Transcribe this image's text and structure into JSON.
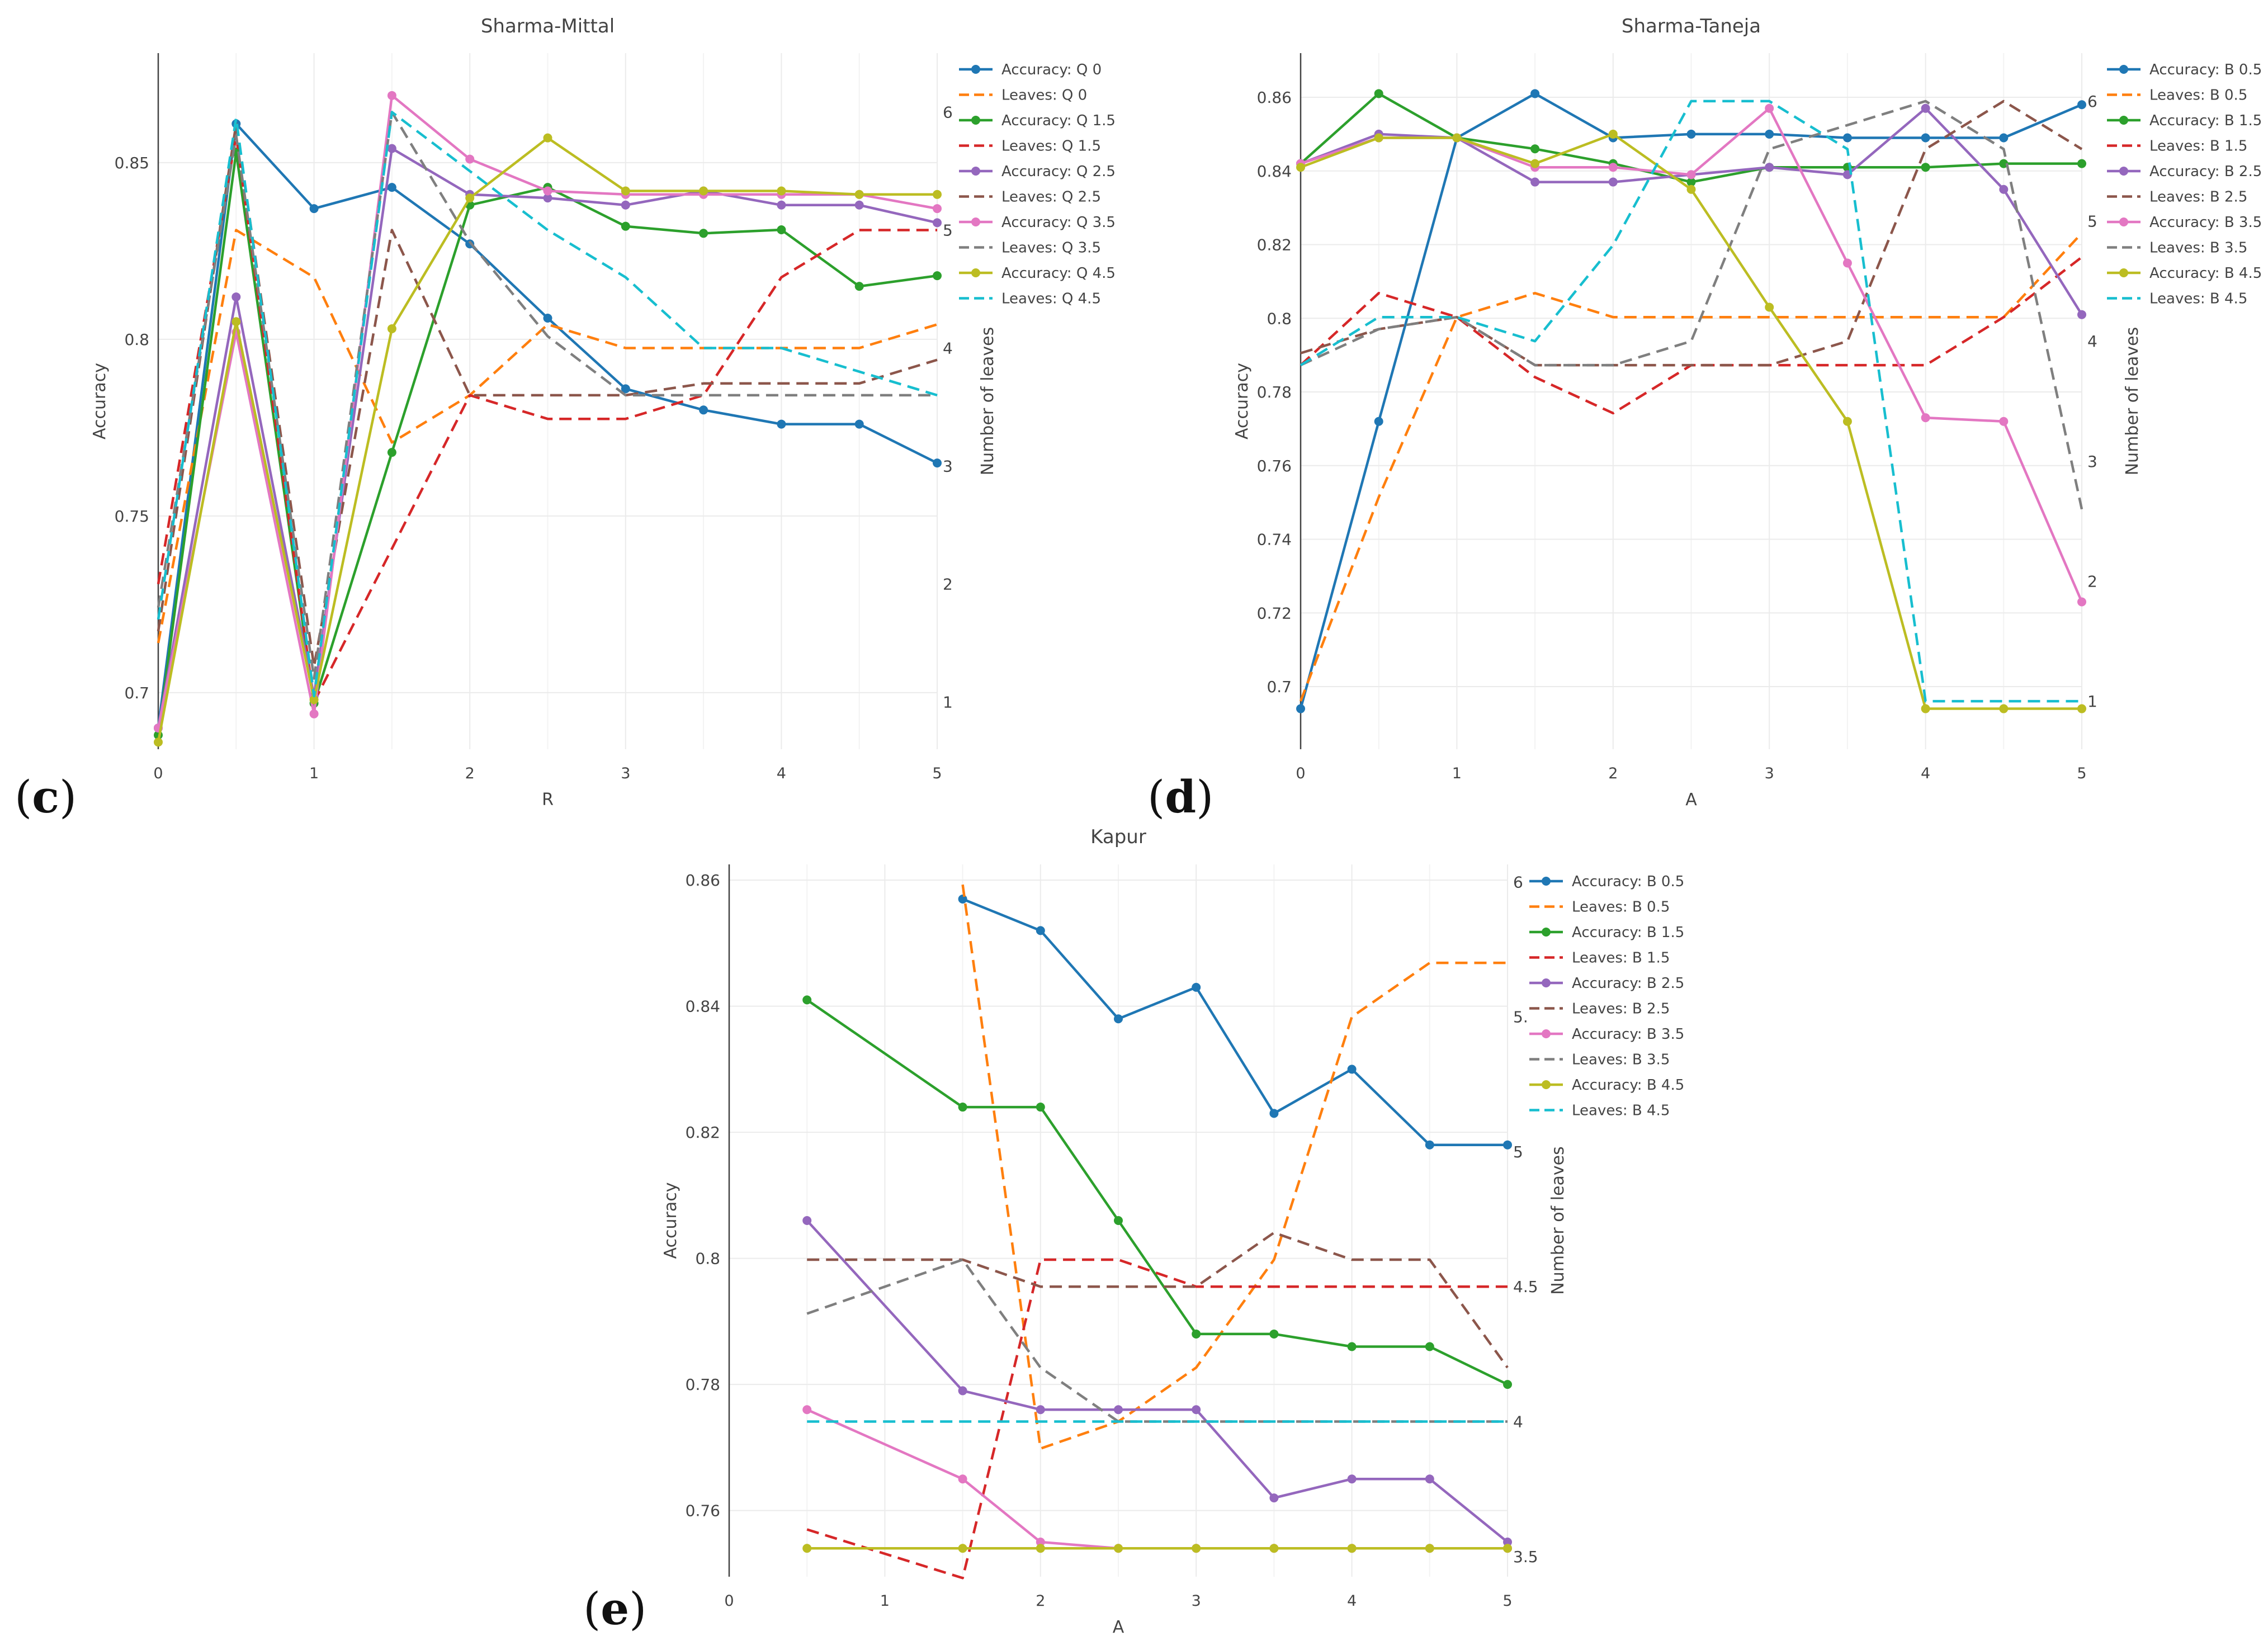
{
  "panel_labels": {
    "c": "(",
    "c_letter": "c",
    "c_close": ")",
    "d": "(",
    "d_letter": "d",
    "d_close": ")",
    "e": "(",
    "e_letter": "e",
    "e_close": ")"
  },
  "colors": {
    "blue": "#1f77b4",
    "orange": "#ff7f0e",
    "green": "#2ca02c",
    "red": "#d62728",
    "purple": "#9467bd",
    "brown": "#8c564b",
    "pink": "#e377c2",
    "gray": "#7f7f7f",
    "olive": "#bcbd22",
    "cyan": "#17becf",
    "grid": "#ebebeb",
    "axis": "#444444"
  },
  "chart_data": [
    {
      "type": "line",
      "id": "c",
      "title": "Sharma-Mittal",
      "xlabel": "R",
      "ylabel": "Accuracy",
      "y2label": "Number of leaves",
      "xlim": [
        0,
        5
      ],
      "ylim": [
        0.684,
        0.881
      ],
      "y2lim": [
        0.6,
        6.5
      ],
      "xticks": [
        "0",
        "1",
        "2",
        "3",
        "4",
        "5"
      ],
      "yticks": [
        {
          "v": 0.7,
          "t": "0.7"
        },
        {
          "v": 0.75,
          "t": "0.75"
        },
        {
          "v": 0.8,
          "t": "0.8"
        },
        {
          "v": 0.85,
          "t": "0.85"
        }
      ],
      "y2ticks": [
        {
          "v": 1,
          "t": "1"
        },
        {
          "v": 2,
          "t": "2"
        },
        {
          "v": 3,
          "t": "3"
        },
        {
          "v": 4,
          "t": "4"
        },
        {
          "v": 5,
          "t": "5"
        },
        {
          "v": 6,
          "t": "6"
        }
      ],
      "x": [
        0,
        0.5,
        1,
        1.5,
        2,
        2.5,
        3,
        3.5,
        4,
        4.5,
        5
      ],
      "series": [
        {
          "name": "Accuracy: Q 0",
          "color": "blue",
          "axis": "y",
          "dash": false,
          "values": [
            0.69,
            0.861,
            0.837,
            0.843,
            0.827,
            0.806,
            0.786,
            0.78,
            0.776,
            0.776,
            0.765
          ]
        },
        {
          "name": "Leaves: Q 0",
          "color": "orange",
          "axis": "y2",
          "dash": true,
          "values": [
            1.5,
            5.0,
            4.6,
            3.2,
            3.6,
            4.2,
            4.0,
            4.0,
            4.0,
            4.0,
            4.2
          ]
        },
        {
          "name": "Accuracy: Q 1.5",
          "color": "green",
          "axis": "y",
          "dash": false,
          "values": [
            0.688,
            0.853,
            0.697,
            0.768,
            0.838,
            0.843,
            0.832,
            0.83,
            0.831,
            0.815,
            0.818
          ]
        },
        {
          "name": "Leaves: Q 1.5",
          "color": "red",
          "axis": "y2",
          "dash": true,
          "values": [
            2.0,
            5.8,
            1.0,
            2.3,
            3.6,
            3.4,
            3.4,
            3.6,
            4.6,
            5.0,
            5.0
          ]
        },
        {
          "name": "Accuracy: Q 2.5",
          "color": "purple",
          "axis": "y",
          "dash": false,
          "values": [
            0.69,
            0.812,
            0.699,
            0.854,
            0.841,
            0.84,
            0.838,
            0.842,
            0.838,
            0.838,
            0.833
          ]
        },
        {
          "name": "Leaves: Q 2.5",
          "color": "brown",
          "axis": "y2",
          "dash": true,
          "values": [
            1.6,
            5.9,
            1.3,
            5.0,
            3.6,
            3.6,
            3.6,
            3.7,
            3.7,
            3.7,
            3.9
          ]
        },
        {
          "name": "Accuracy: Q 3.5",
          "color": "pink",
          "axis": "y",
          "dash": false,
          "values": [
            0.69,
            0.802,
            0.694,
            0.869,
            0.851,
            0.842,
            0.841,
            0.841,
            0.841,
            0.841,
            0.837
          ]
        },
        {
          "name": "Leaves: Q 3.5",
          "color": "gray",
          "axis": "y2",
          "dash": true,
          "values": [
            1.8,
            5.8,
            1.2,
            6.0,
            4.9,
            4.1,
            3.6,
            3.6,
            3.6,
            3.6,
            3.6
          ]
        },
        {
          "name": "Accuracy: Q 4.5",
          "color": "olive",
          "axis": "y",
          "dash": false,
          "values": [
            0.686,
            0.805,
            0.698,
            0.803,
            0.84,
            0.857,
            0.842,
            0.842,
            0.842,
            0.841,
            0.841
          ]
        },
        {
          "name": "Leaves: Q 4.5",
          "color": "cyan",
          "axis": "y2",
          "dash": true,
          "values": [
            1.7,
            5.95,
            1.05,
            6.0,
            5.5,
            5.0,
            4.6,
            4.0,
            4.0,
            3.8,
            3.6
          ]
        }
      ]
    },
    {
      "type": "line",
      "id": "d",
      "title": "Sharma-Taneja",
      "xlabel": "A",
      "ylabel": "Accuracy",
      "y2label": "Number of leaves",
      "xlim": [
        0,
        5
      ],
      "ylim": [
        0.683,
        0.872
      ],
      "y2lim": [
        0.6,
        6.4
      ],
      "xticks": [
        "0",
        "1",
        "2",
        "3",
        "4",
        "5"
      ],
      "yticks": [
        {
          "v": 0.7,
          "t": "0.7"
        },
        {
          "v": 0.72,
          "t": "0.72"
        },
        {
          "v": 0.74,
          "t": "0.74"
        },
        {
          "v": 0.76,
          "t": "0.76"
        },
        {
          "v": 0.78,
          "t": "0.78"
        },
        {
          "v": 0.8,
          "t": "0.8"
        },
        {
          "v": 0.82,
          "t": "0.82"
        },
        {
          "v": 0.84,
          "t": "0.84"
        },
        {
          "v": 0.86,
          "t": "0.86"
        }
      ],
      "y2ticks": [
        {
          "v": 1,
          "t": "1"
        },
        {
          "v": 2,
          "t": "2"
        },
        {
          "v": 3,
          "t": "3"
        },
        {
          "v": 4,
          "t": "4"
        },
        {
          "v": 5,
          "t": "5"
        },
        {
          "v": 6,
          "t": "6"
        }
      ],
      "x": [
        0,
        0.5,
        1,
        1.5,
        2,
        2.5,
        3,
        3.5,
        4,
        4.5,
        5
      ],
      "series": [
        {
          "name": "Accuracy: B 0.5",
          "color": "blue",
          "axis": "y",
          "dash": false,
          "values": [
            0.694,
            0.772,
            0.849,
            0.861,
            0.849,
            0.85,
            0.85,
            0.849,
            0.849,
            0.849,
            0.858
          ]
        },
        {
          "name": "Leaves: B 0.5",
          "color": "orange",
          "axis": "y2",
          "dash": true,
          "values": [
            1.0,
            2.7,
            4.2,
            4.4,
            4.2,
            4.2,
            4.2,
            4.2,
            4.2,
            4.2,
            4.9
          ]
        },
        {
          "name": "Accuracy: B 1.5",
          "color": "green",
          "axis": "y",
          "dash": false,
          "values": [
            0.842,
            0.861,
            0.849,
            0.846,
            0.842,
            0.837,
            0.841,
            0.841,
            0.841,
            0.842,
            0.842
          ]
        },
        {
          "name": "Leaves: B 1.5",
          "color": "red",
          "axis": "y2",
          "dash": true,
          "values": [
            3.8,
            4.4,
            4.2,
            3.7,
            3.4,
            3.8,
            3.8,
            3.8,
            3.8,
            4.2,
            4.7
          ]
        },
        {
          "name": "Accuracy: B 2.5",
          "color": "purple",
          "axis": "y",
          "dash": false,
          "values": [
            0.842,
            0.85,
            0.849,
            0.837,
            0.837,
            0.839,
            0.841,
            0.839,
            0.857,
            0.835,
            0.801
          ]
        },
        {
          "name": "Leaves: B 2.5",
          "color": "brown",
          "axis": "y2",
          "dash": true,
          "values": [
            3.9,
            4.1,
            4.2,
            3.8,
            3.8,
            3.8,
            3.8,
            4.0,
            5.6,
            6.0,
            5.6
          ]
        },
        {
          "name": "Accuracy: B 3.5",
          "color": "pink",
          "axis": "y",
          "dash": false,
          "values": [
            0.842,
            0.849,
            0.849,
            0.841,
            0.841,
            0.839,
            0.857,
            0.815,
            0.773,
            0.772,
            0.723
          ]
        },
        {
          "name": "Leaves: B 3.5",
          "color": "gray",
          "axis": "y2",
          "dash": true,
          "values": [
            3.8,
            4.1,
            4.2,
            3.8,
            3.8,
            4.0,
            5.6,
            5.8,
            6.0,
            5.6,
            2.6
          ]
        },
        {
          "name": "Accuracy: B 4.5",
          "color": "olive",
          "axis": "y",
          "dash": false,
          "values": [
            0.841,
            0.849,
            0.849,
            0.842,
            0.85,
            0.835,
            0.803,
            0.772,
            0.694,
            0.694,
            0.694
          ]
        },
        {
          "name": "Leaves: B 4.5",
          "color": "cyan",
          "axis": "y2",
          "dash": true,
          "values": [
            3.8,
            4.2,
            4.2,
            4.0,
            4.8,
            6.0,
            6.0,
            5.6,
            1.0,
            1.0,
            1.0
          ]
        }
      ]
    },
    {
      "type": "line",
      "id": "e",
      "title": "Kapur",
      "xlabel": "A",
      "ylabel": "Accuracy",
      "y2label": "Number of leaves",
      "xlim": [
        0,
        5
      ],
      "ylim": [
        0.7495,
        0.8625
      ],
      "y2lim": [
        3.425,
        6.065
      ],
      "xticks": [
        "0",
        "1",
        "2",
        "3",
        "4",
        "5"
      ],
      "yticks": [
        {
          "v": 0.76,
          "t": "0.76"
        },
        {
          "v": 0.78,
          "t": "0.78"
        },
        {
          "v": 0.8,
          "t": "0.8"
        },
        {
          "v": 0.82,
          "t": "0.82"
        },
        {
          "v": 0.84,
          "t": "0.84"
        },
        {
          "v": 0.86,
          "t": "0.86"
        }
      ],
      "y2ticks": [
        {
          "v": 3.5,
          "t": "3.5"
        },
        {
          "v": 4,
          "t": "4"
        },
        {
          "v": 4.5,
          "t": "4.5"
        },
        {
          "v": 5,
          "t": "5"
        },
        {
          "v": 5.5,
          "t": "5."
        },
        {
          "v": 6,
          "t": "6"
        }
      ],
      "x": [
        0.5,
        1.5,
        2,
        2.5,
        3,
        3.5,
        4,
        4.5,
        5
      ],
      "series": [
        {
          "name": "Accuracy: B 0.5",
          "color": "blue",
          "axis": "y",
          "dash": false,
          "values": [
            null,
            0.857,
            0.852,
            0.838,
            0.843,
            0.823,
            0.83,
            0.818,
            0.818
          ]
        },
        {
          "name": "Leaves:  B 0.5",
          "color": "orange",
          "axis": "y2",
          "dash": true,
          "values": [
            null,
            5.99,
            3.9,
            4.0,
            4.2,
            4.6,
            5.5,
            5.7,
            5.7
          ]
        },
        {
          "name": "Accuracy:  B 1.5",
          "color": "green",
          "axis": "y",
          "dash": false,
          "values": [
            0.841,
            0.824,
            0.824,
            0.806,
            0.788,
            0.788,
            0.786,
            0.786,
            0.78
          ]
        },
        {
          "name": "Leaves:  B 1.5",
          "color": "red",
          "axis": "y2",
          "dash": true,
          "values": [
            3.6,
            3.42,
            4.6,
            4.6,
            4.5,
            4.5,
            4.5,
            4.5,
            4.5
          ]
        },
        {
          "name": "Accuracy:  B 2.5",
          "color": "purple",
          "axis": "y",
          "dash": false,
          "values": [
            0.806,
            0.779,
            0.776,
            0.776,
            0.776,
            0.762,
            0.765,
            0.765,
            0.755
          ]
        },
        {
          "name": "Leaves:  B 2.5",
          "color": "brown",
          "axis": "y2",
          "dash": true,
          "values": [
            4.6,
            4.6,
            4.5,
            4.5,
            4.5,
            4.7,
            4.6,
            4.6,
            4.2
          ]
        },
        {
          "name": "Accuracy:  B 3.5",
          "color": "pink",
          "axis": "y",
          "dash": false,
          "values": [
            0.776,
            0.765,
            0.755,
            0.754,
            0.754,
            0.754,
            0.754,
            0.754,
            0.754
          ]
        },
        {
          "name": "Leaves:  B 3.5",
          "color": "gray",
          "axis": "y2",
          "dash": true,
          "values": [
            4.4,
            4.6,
            4.2,
            4.0,
            4.0,
            4.0,
            4.0,
            4.0,
            4.0
          ]
        },
        {
          "name": "Accuracy:  B 4.5",
          "color": "olive",
          "axis": "y",
          "dash": false,
          "values": [
            0.754,
            0.754,
            0.754,
            0.754,
            0.754,
            0.754,
            0.754,
            0.754,
            0.754
          ]
        },
        {
          "name": "Leaves:  B 4.5",
          "color": "cyan",
          "axis": "y2",
          "dash": true,
          "values": [
            4.0,
            4.0,
            4.0,
            4.0,
            4.0,
            4.0,
            4.0,
            4.0,
            4.0
          ]
        }
      ]
    }
  ]
}
